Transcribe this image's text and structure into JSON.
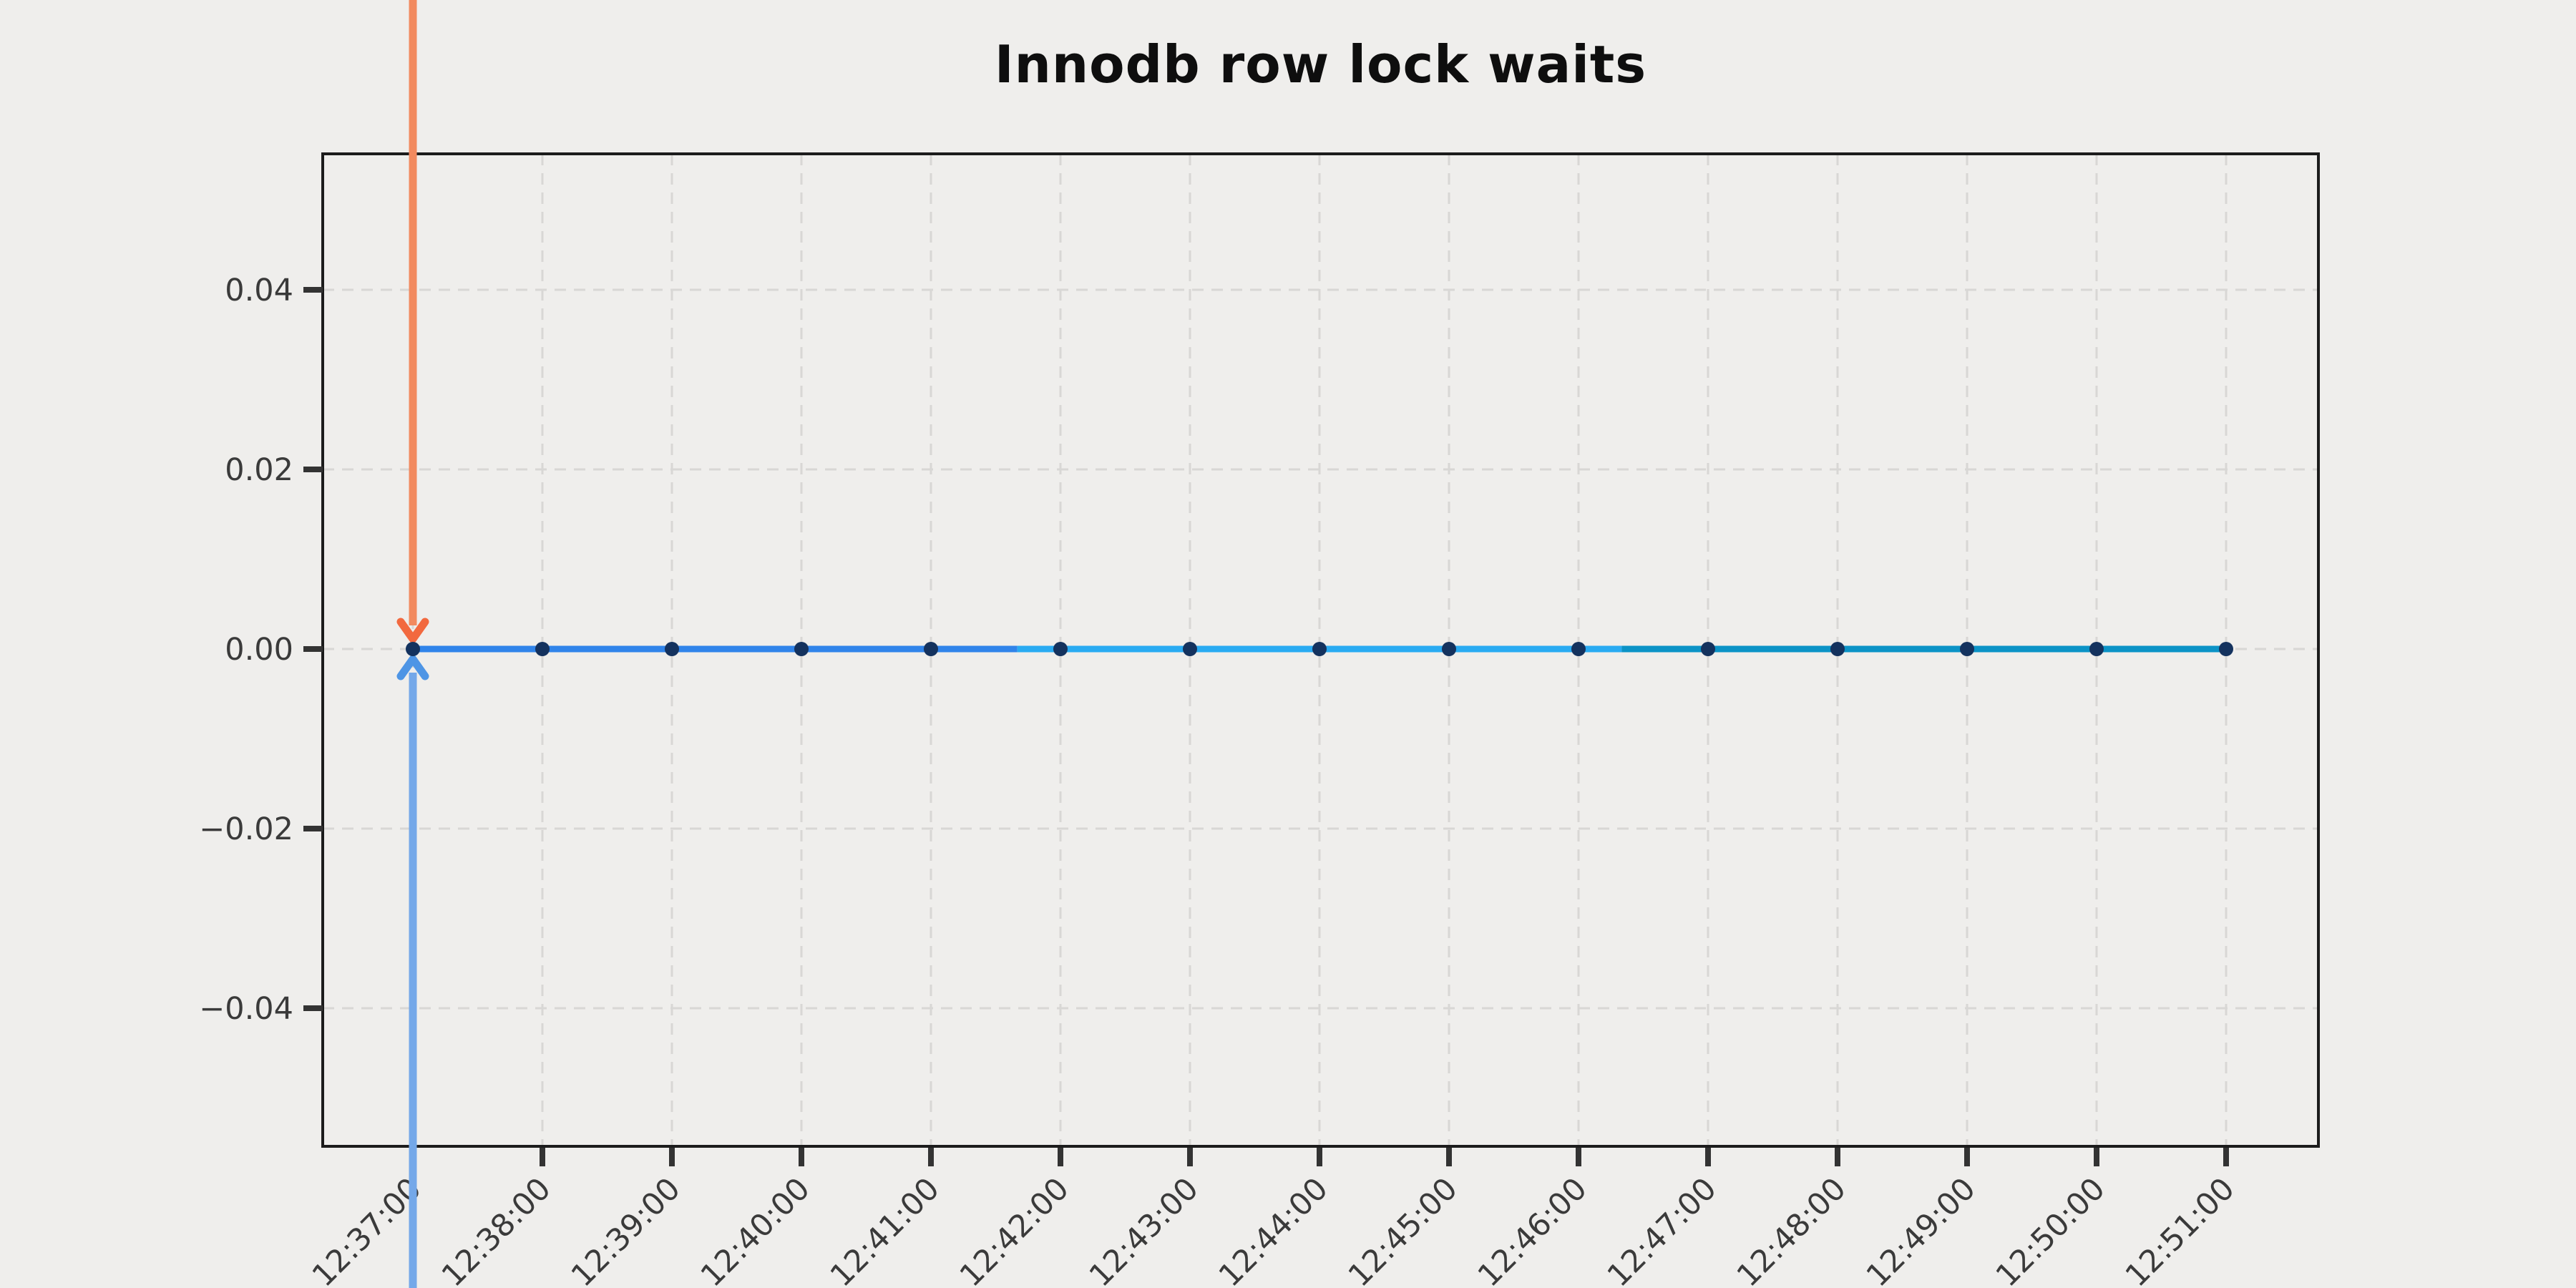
{
  "chart_data": {
    "type": "line",
    "title": "Innodb row lock waits",
    "xlabel": "",
    "ylabel": "",
    "x": [
      "12:37:00",
      "12:38:00",
      "12:39:00",
      "12:40:00",
      "12:41:00",
      "12:42:00",
      "12:43:00",
      "12:44:00",
      "12:45:00",
      "12:46:00",
      "12:47:00",
      "12:48:00",
      "12:49:00",
      "12:50:00",
      "12:51:00"
    ],
    "values": [
      0,
      0,
      0,
      0,
      0,
      0,
      0,
      0,
      0,
      0,
      0,
      0,
      0,
      0,
      0
    ],
    "yticks_values": [
      0.04,
      0.02,
      0.0,
      -0.02,
      -0.04
    ],
    "ytick_labels": [
      "0.04",
      "0.02",
      "0.00",
      "−0.02",
      "−0.04"
    ],
    "ylim": [
      -0.055,
      0.055
    ],
    "grid": {
      "on": true,
      "style": "dashed",
      "color": "#d8d7d5"
    },
    "legend": {
      "visible": false
    },
    "marker": {
      "shape": "circle",
      "color": "#14325e"
    },
    "line_segments": [
      {
        "name": "series-segment-1",
        "color": "#3084ea",
        "from_time": "12:37:00",
        "to_time": "12:41:40"
      },
      {
        "name": "series-segment-2",
        "color": "#29abf2",
        "from_time": "12:41:40",
        "to_time": "12:46:20"
      },
      {
        "name": "series-segment-3",
        "color": "#0b93c6",
        "from_time": "12:46:20",
        "to_time": "12:51:00"
      }
    ],
    "annotations": [
      {
        "name": "down-arrow-annotation",
        "direction": "down",
        "target_x": "12:37:00",
        "target_y": 0,
        "shaft_color": "#f28a5f",
        "head_color": "#f2693f"
      },
      {
        "name": "up-arrow-annotation",
        "direction": "up",
        "target_x": "12:37:00",
        "target_y": 0,
        "shaft_color": "#74a8e9",
        "head_color": "#4e95e5"
      }
    ],
    "style": {
      "background": "#efeeec",
      "spine_color": "#1c1c1c",
      "tick_color": "#333333",
      "tick_label_color": "#3a3a3a",
      "title_color": "#0e0e0e"
    }
  }
}
